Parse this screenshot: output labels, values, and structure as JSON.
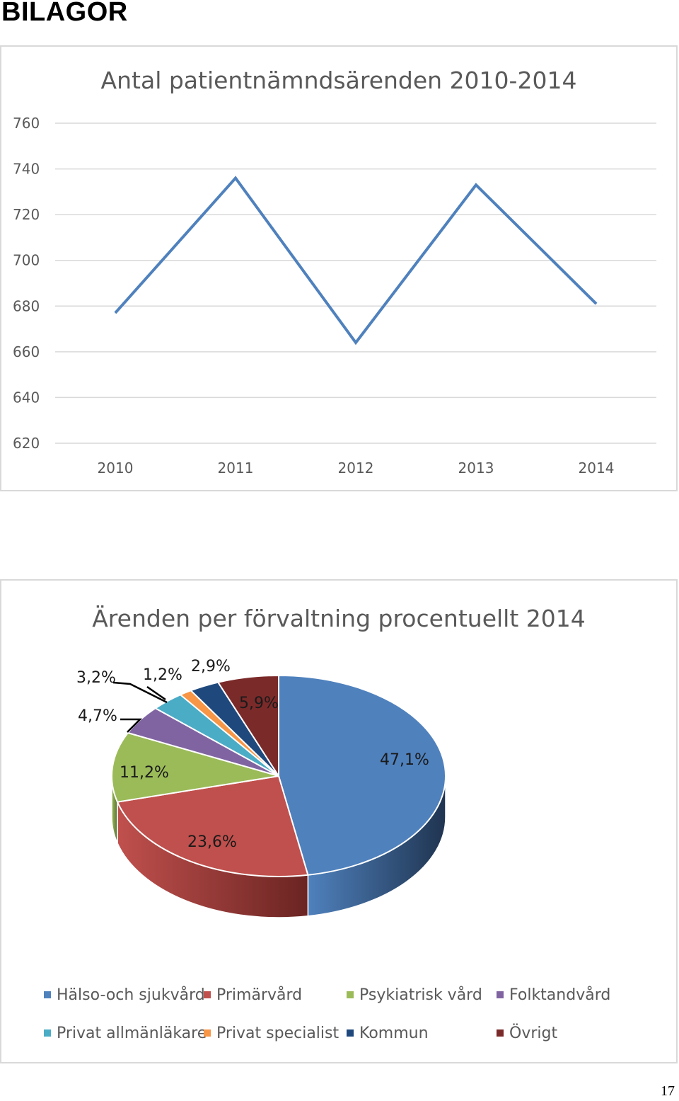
{
  "page": {
    "heading": "BILAGOR",
    "page_number": "17"
  },
  "chart_data": [
    {
      "type": "line",
      "title": "Antal patientnämndsärenden 2010-2014",
      "xlabel": "",
      "ylabel": "",
      "categories": [
        "2010",
        "2011",
        "2012",
        "2013",
        "2014"
      ],
      "series": [
        {
          "values": [
            677,
            736,
            664,
            733,
            681
          ],
          "color": "#4f81bd"
        }
      ],
      "ylim": [
        620,
        760
      ],
      "yticks": [
        760,
        740,
        720,
        700,
        680,
        660,
        640,
        620
      ],
      "grid": true,
      "legend": "none"
    },
    {
      "type": "pie",
      "title": "Ärenden per förvaltning procentuellt 2014",
      "slices": [
        {
          "label": "Hälso-och sjukvård",
          "value": 47.1,
          "text": "47,1%",
          "color": "#4f81bd",
          "dark": "#1f3450"
        },
        {
          "label": "Primärvård",
          "value": 23.6,
          "text": "23,6%",
          "color": "#c0504d",
          "dark": "#6a2422"
        },
        {
          "label": "Psykiatrisk vård",
          "value": 11.2,
          "text": "11,2%",
          "color": "#9bbb59",
          "dark": "#5b7033"
        },
        {
          "label": "Folktandvård",
          "value": 4.7,
          "text": "4,7%",
          "color": "#8064a2",
          "dark": "#4a3a5e"
        },
        {
          "label": "Privat allmänläkare",
          "value": 3.2,
          "text": "3,2%",
          "color": "#4bacc6",
          "dark": "#2b6675"
        },
        {
          "label": "Privat specialist",
          "value": 1.2,
          "text": "1,2%",
          "color": "#f79646",
          "dark": "#985a26"
        },
        {
          "label": "Kommun",
          "value": 2.9,
          "text": "2,9%",
          "color": "#1f497d",
          "dark": "#10284a"
        },
        {
          "label": "Övrigt",
          "value": 5.9,
          "text": "5,9%",
          "color": "#7b2a2a",
          "dark": "#4a1717"
        }
      ],
      "legend": "bottom"
    }
  ]
}
